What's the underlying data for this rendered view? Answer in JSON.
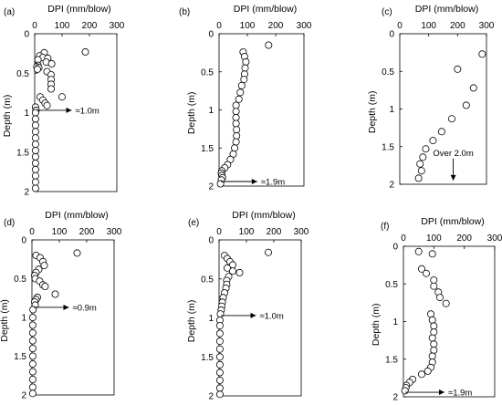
{
  "chart_data": [
    {
      "type": "scatter",
      "panel_label": "(a)",
      "xlabel": "DPI (mm/blow)",
      "ylabel": "Depth (m)",
      "xlim": [
        0,
        300
      ],
      "ylim": [
        2,
        0
      ],
      "xticks": [
        "0",
        "100",
        "200",
        "300"
      ],
      "yticks": [
        "0",
        "0.5",
        "1",
        "1.5",
        "2"
      ],
      "x_axis_position": "top",
      "annotation": "≈1.0m",
      "annotation_depth": 0.97,
      "annotation_style": "horizontal-arrow",
      "series": [
        {
          "points": [
            [
              185,
              0.23
            ],
            [
              35,
              0.24
            ],
            [
              18,
              0.28
            ],
            [
              30,
              0.3
            ],
            [
              48,
              0.31
            ],
            [
              12,
              0.33
            ],
            [
              42,
              0.36
            ],
            [
              62,
              0.38
            ],
            [
              12,
              0.4
            ],
            [
              8,
              0.42
            ],
            [
              15,
              0.43
            ],
            [
              10,
              0.45
            ],
            [
              45,
              0.48
            ],
            [
              60,
              0.52
            ],
            [
              60,
              0.58
            ],
            [
              60,
              0.64
            ],
            [
              60,
              0.7
            ],
            [
              20,
              0.8
            ],
            [
              100,
              0.8
            ],
            [
              30,
              0.84
            ],
            [
              38,
              0.88
            ],
            [
              45,
              0.91
            ],
            [
              3,
              0.93
            ],
            [
              5,
              0.97
            ],
            [
              3,
              1.0
            ],
            [
              3,
              1.08
            ],
            [
              3,
              1.16
            ],
            [
              3,
              1.24
            ],
            [
              3,
              1.32
            ],
            [
              3,
              1.4
            ],
            [
              3,
              1.48
            ],
            [
              3,
              1.56
            ],
            [
              3,
              1.64
            ],
            [
              3,
              1.72
            ],
            [
              3,
              1.8
            ],
            [
              3,
              1.88
            ],
            [
              3,
              1.96
            ]
          ]
        }
      ]
    },
    {
      "type": "scatter",
      "panel_label": "(b)",
      "xlabel": "DPI (mm/blow)",
      "ylabel": "Depth (m)",
      "xlim": [
        0,
        300
      ],
      "ylim": [
        2,
        0
      ],
      "xticks": [
        "0",
        "100",
        "200",
        "300"
      ],
      "yticks": [
        "0",
        "0.5",
        "1",
        "1.5",
        "2"
      ],
      "x_axis_position": "top",
      "annotation": "≈1.9m",
      "annotation_depth": 1.94,
      "annotation_style": "horizontal-arrow",
      "series": [
        {
          "points": [
            [
              175,
              0.15
            ],
            [
              85,
              0.24
            ],
            [
              90,
              0.3
            ],
            [
              95,
              0.37
            ],
            [
              92,
              0.45
            ],
            [
              90,
              0.53
            ],
            [
              88,
              0.6
            ],
            [
              80,
              0.68
            ],
            [
              75,
              0.77
            ],
            [
              70,
              0.86
            ],
            [
              60,
              0.94
            ],
            [
              60,
              1.02
            ],
            [
              60,
              1.1
            ],
            [
              60,
              1.18
            ],
            [
              62,
              1.26
            ],
            [
              62,
              1.34
            ],
            [
              60,
              1.42
            ],
            [
              55,
              1.5
            ],
            [
              50,
              1.58
            ],
            [
              40,
              1.65
            ],
            [
              30,
              1.72
            ],
            [
              20,
              1.76
            ],
            [
              10,
              1.8
            ],
            [
              8,
              1.83
            ],
            [
              10,
              1.86
            ],
            [
              12,
              1.89
            ],
            [
              8,
              1.92
            ],
            [
              5,
              1.97
            ]
          ]
        }
      ]
    },
    {
      "type": "scatter",
      "panel_label": "(c)",
      "xlabel": "DPI (mm/blow)",
      "ylabel": "Depth (m)",
      "xlim": [
        0,
        300
      ],
      "ylim": [
        2,
        0
      ],
      "xticks": [
        "0",
        "100",
        "200",
        "300"
      ],
      "yticks": [
        "0",
        "0.5",
        "1",
        "1.5",
        "2"
      ],
      "x_axis_position": "top",
      "annotation": "Over 2.0m",
      "annotation_depth": 1.95,
      "annotation_style": "vertical-arrow",
      "series": [
        {
          "points": [
            [
              285,
              0.27
            ],
            [
              200,
              0.47
            ],
            [
              255,
              0.72
            ],
            [
              230,
              0.95
            ],
            [
              180,
              1.13
            ],
            [
              145,
              1.3
            ],
            [
              115,
              1.42
            ],
            [
              90,
              1.53
            ],
            [
              80,
              1.64
            ],
            [
              70,
              1.73
            ],
            [
              75,
              1.82
            ],
            [
              65,
              1.92
            ]
          ]
        }
      ]
    },
    {
      "type": "scatter",
      "panel_label": "(d)",
      "xlabel": "DPI (mm/blow)",
      "ylabel": "Depth (m)",
      "xlim": [
        0,
        300
      ],
      "ylim": [
        2,
        0
      ],
      "xticks": [
        "0",
        "100",
        "200",
        "300"
      ],
      "yticks": [
        "0",
        "0.5",
        "1",
        "1.5",
        "2"
      ],
      "x_axis_position": "top",
      "annotation": "≈0.9m",
      "annotation_depth": 0.87,
      "annotation_style": "horizontal-arrow",
      "series": [
        {
          "points": [
            [
              165,
              0.17
            ],
            [
              15,
              0.2
            ],
            [
              30,
              0.23
            ],
            [
              40,
              0.28
            ],
            [
              45,
              0.33
            ],
            [
              25,
              0.38
            ],
            [
              15,
              0.42
            ],
            [
              10,
              0.46
            ],
            [
              12,
              0.5
            ],
            [
              28,
              0.53
            ],
            [
              40,
              0.58
            ],
            [
              48,
              0.6
            ],
            [
              85,
              0.7
            ],
            [
              20,
              0.74
            ],
            [
              15,
              0.77
            ],
            [
              10,
              0.8
            ],
            [
              12,
              0.84
            ],
            [
              4,
              0.9
            ],
            [
              3,
              1.0
            ],
            [
              3,
              1.1
            ],
            [
              3,
              1.2
            ],
            [
              3,
              1.3
            ],
            [
              3,
              1.4
            ],
            [
              3,
              1.5
            ],
            [
              3,
              1.6
            ],
            [
              3,
              1.7
            ],
            [
              3,
              1.8
            ],
            [
              3,
              1.9
            ],
            [
              3,
              1.98
            ]
          ]
        }
      ]
    },
    {
      "type": "scatter",
      "panel_label": "(e)",
      "xlabel": "DPI (mm/blow)",
      "ylabel": "Depth (m)",
      "xlim": [
        0,
        300
      ],
      "ylim": [
        2,
        0
      ],
      "xticks": [
        "0",
        "100",
        "200",
        "300"
      ],
      "yticks": [
        "0",
        "0.5",
        "1",
        "1.5",
        "2"
      ],
      "x_axis_position": "top",
      "annotation": "≈1.0m",
      "annotation_depth": 0.97,
      "annotation_style": "horizontal-arrow",
      "series": [
        {
          "points": [
            [
              180,
              0.16
            ],
            [
              20,
              0.2
            ],
            [
              30,
              0.24
            ],
            [
              40,
              0.28
            ],
            [
              50,
              0.32
            ],
            [
              30,
              0.36
            ],
            [
              50,
              0.4
            ],
            [
              75,
              0.42
            ],
            [
              35,
              0.47
            ],
            [
              28,
              0.52
            ],
            [
              28,
              0.57
            ],
            [
              25,
              0.62
            ],
            [
              20,
              0.68
            ],
            [
              15,
              0.74
            ],
            [
              12,
              0.8
            ],
            [
              10,
              0.85
            ],
            [
              8,
              0.9
            ],
            [
              5,
              0.95
            ],
            [
              3,
              1.03
            ],
            [
              3,
              1.1
            ],
            [
              3,
              1.2
            ],
            [
              3,
              1.3
            ],
            [
              3,
              1.4
            ],
            [
              3,
              1.5
            ],
            [
              3,
              1.6
            ],
            [
              3,
              1.7
            ],
            [
              3,
              1.8
            ],
            [
              3,
              1.9
            ],
            [
              3,
              1.98
            ]
          ]
        }
      ]
    },
    {
      "type": "scatter",
      "panel_label": "(f)",
      "xlabel": "DPI (mm/blow)",
      "ylabel": "Depth (m)",
      "xlim": [
        0,
        300
      ],
      "ylim": [
        2,
        0
      ],
      "xticks": [
        "0",
        "100",
        "200",
        "300"
      ],
      "yticks": [
        "0",
        "0.5",
        "1",
        "1.5",
        "2"
      ],
      "x_axis_position": "top",
      "annotation": "≈1.9m",
      "annotation_depth": 1.94,
      "annotation_style": "horizontal-arrow",
      "series": [
        {
          "points": [
            [
              50,
              0.07
            ],
            [
              95,
              0.1
            ],
            [
              60,
              0.3
            ],
            [
              75,
              0.36
            ],
            [
              100,
              0.45
            ],
            [
              100,
              0.53
            ],
            [
              115,
              0.61
            ],
            [
              120,
              0.68
            ],
            [
              140,
              0.76
            ],
            [
              90,
              0.9
            ],
            [
              95,
              0.98
            ],
            [
              100,
              1.06
            ],
            [
              100,
              1.14
            ],
            [
              95,
              1.22
            ],
            [
              100,
              1.3
            ],
            [
              100,
              1.38
            ],
            [
              95,
              1.46
            ],
            [
              95,
              1.54
            ],
            [
              90,
              1.61
            ],
            [
              80,
              1.66
            ],
            [
              60,
              1.7
            ],
            [
              30,
              1.77
            ],
            [
              20,
              1.81
            ],
            [
              10,
              1.85
            ],
            [
              8,
              1.88
            ],
            [
              5,
              1.92
            ]
          ]
        }
      ]
    }
  ]
}
